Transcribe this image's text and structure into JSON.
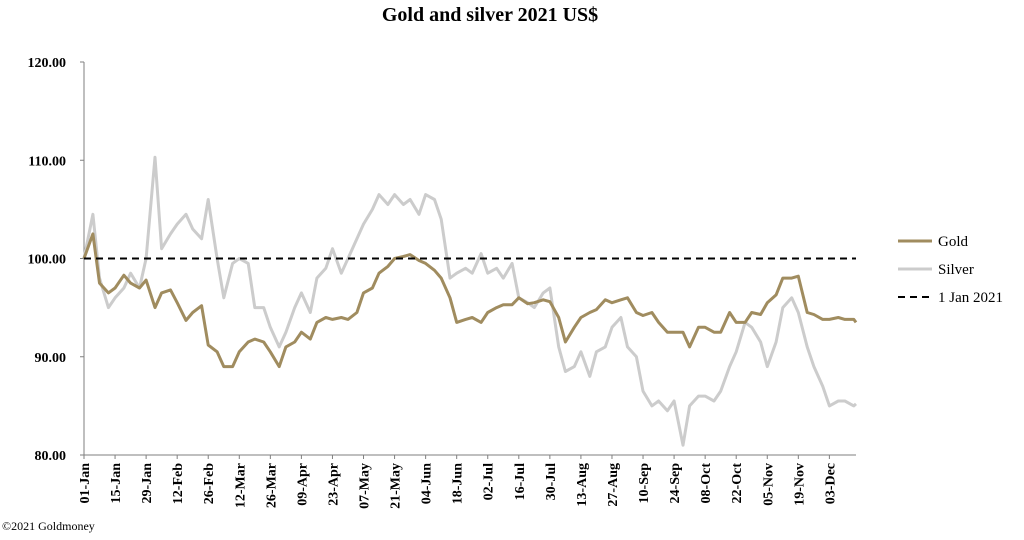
{
  "colors": {
    "gold": "#a08c5f",
    "silver": "#cccccc",
    "reference": "#000000",
    "axis": "#7f7f7f"
  },
  "copyright": "©2021 Goldmoney",
  "chart_data": {
    "type": "line",
    "title": "Gold and silver 2021  US$",
    "xlabel": "",
    "ylabel": "",
    "ylim": [
      80,
      120
    ],
    "y_ticks": [
      "120.00",
      "110.00",
      "100.00",
      "90.00",
      "80.00"
    ],
    "x_tick_labels": [
      "01-Jan",
      "15-Jan",
      "29-Jan",
      "12-Feb",
      "26-Feb",
      "12-Mar",
      "26-Mar",
      "09-Apr",
      "23-Apr",
      "07-May",
      "21-May",
      "04-Jun",
      "18-Jun",
      "02-Jul",
      "16-Jul",
      "30-Jul",
      "13-Aug",
      "27-Aug",
      "10-Sep",
      "24-Sep",
      "08-Oct",
      "22-Oct",
      "05-Nov",
      "19-Nov",
      "03-Dec"
    ],
    "x_range": [
      "01-Jan",
      "15-Dec"
    ],
    "grid": false,
    "legend_position": "right",
    "series": [
      {
        "name": "Gold",
        "x": [
          "01-Jan",
          "05-Jan",
          "08-Jan",
          "12-Jan",
          "15-Jan",
          "19-Jan",
          "22-Jan",
          "26-Jan",
          "29-Jan",
          "02-Feb",
          "05-Feb",
          "09-Feb",
          "12-Feb",
          "16-Feb",
          "19-Feb",
          "23-Feb",
          "26-Feb",
          "02-Mar",
          "05-Mar",
          "09-Mar",
          "12-Mar",
          "16-Mar",
          "19-Mar",
          "23-Mar",
          "26-Mar",
          "30-Mar",
          "02-Apr",
          "06-Apr",
          "09-Apr",
          "13-Apr",
          "16-Apr",
          "20-Apr",
          "23-Apr",
          "27-Apr",
          "30-Apr",
          "04-May",
          "07-May",
          "11-May",
          "14-May",
          "18-May",
          "21-May",
          "25-May",
          "28-May",
          "01-Jun",
          "04-Jun",
          "08-Jun",
          "11-Jun",
          "15-Jun",
          "18-Jun",
          "22-Jun",
          "25-Jun",
          "29-Jun",
          "02-Jul",
          "06-Jul",
          "09-Jul",
          "13-Jul",
          "16-Jul",
          "20-Jul",
          "23-Jul",
          "27-Jul",
          "30-Jul",
          "03-Aug",
          "06-Aug",
          "10-Aug",
          "13-Aug",
          "17-Aug",
          "20-Aug",
          "24-Aug",
          "27-Aug",
          "31-Aug",
          "03-Sep",
          "07-Sep",
          "10-Sep",
          "14-Sep",
          "17-Sep",
          "21-Sep",
          "24-Sep",
          "28-Sep",
          "01-Oct",
          "05-Oct",
          "08-Oct",
          "12-Oct",
          "15-Oct",
          "19-Oct",
          "22-Oct",
          "26-Oct",
          "29-Oct",
          "02-Nov",
          "05-Nov",
          "09-Nov",
          "12-Nov",
          "16-Nov",
          "19-Nov",
          "23-Nov",
          "26-Nov",
          "30-Nov",
          "03-Dec",
          "07-Dec",
          "10-Dec",
          "14-Dec",
          "15-Dec"
        ],
        "values": [
          100.0,
          102.5,
          97.5,
          96.5,
          97.0,
          98.3,
          97.5,
          97.0,
          97.8,
          95.0,
          96.5,
          96.8,
          95.5,
          93.7,
          94.5,
          95.2,
          91.2,
          90.5,
          89.0,
          89.0,
          90.5,
          91.5,
          91.8,
          91.5,
          90.5,
          89.0,
          91.0,
          91.5,
          92.5,
          91.8,
          93.5,
          94.0,
          93.8,
          94.0,
          93.8,
          94.5,
          96.5,
          97.0,
          98.5,
          99.2,
          100.0,
          100.2,
          100.4,
          99.8,
          99.5,
          98.8,
          98.0,
          96.0,
          93.5,
          93.8,
          94.0,
          93.5,
          94.5,
          95.0,
          95.3,
          95.3,
          96.0,
          95.4,
          95.5,
          95.8,
          95.6,
          94.0,
          91.5,
          93.0,
          94.0,
          94.5,
          94.8,
          95.8,
          95.5,
          95.8,
          96.0,
          94.5,
          94.2,
          94.5,
          93.5,
          92.5,
          92.5,
          92.5,
          91.0,
          93.0,
          93.0,
          92.5,
          92.5,
          94.5,
          93.5,
          93.5,
          94.5,
          94.3,
          95.5,
          96.3,
          98.0,
          98.0,
          98.2,
          94.5,
          94.3,
          93.8,
          93.8,
          94.0,
          93.8,
          93.8,
          93.5
        ]
      },
      {
        "name": "Silver",
        "x": [
          "01-Jan",
          "05-Jan",
          "08-Jan",
          "12-Jan",
          "15-Jan",
          "19-Jan",
          "22-Jan",
          "26-Jan",
          "29-Jan",
          "02-Feb",
          "05-Feb",
          "09-Feb",
          "12-Feb",
          "16-Feb",
          "19-Feb",
          "23-Feb",
          "26-Feb",
          "02-Mar",
          "05-Mar",
          "09-Mar",
          "12-Mar",
          "16-Mar",
          "19-Mar",
          "23-Mar",
          "26-Mar",
          "30-Mar",
          "02-Apr",
          "06-Apr",
          "09-Apr",
          "13-Apr",
          "16-Apr",
          "20-Apr",
          "23-Apr",
          "27-Apr",
          "30-Apr",
          "04-May",
          "07-May",
          "11-May",
          "14-May",
          "18-May",
          "21-May",
          "25-May",
          "28-May",
          "01-Jun",
          "04-Jun",
          "08-Jun",
          "11-Jun",
          "15-Jun",
          "18-Jun",
          "22-Jun",
          "25-Jun",
          "29-Jun",
          "02-Jul",
          "06-Jul",
          "09-Jul",
          "13-Jul",
          "16-Jul",
          "20-Jul",
          "23-Jul",
          "27-Jul",
          "30-Jul",
          "03-Aug",
          "06-Aug",
          "10-Aug",
          "13-Aug",
          "17-Aug",
          "20-Aug",
          "24-Aug",
          "27-Aug",
          "31-Aug",
          "03-Sep",
          "07-Sep",
          "10-Sep",
          "14-Sep",
          "17-Sep",
          "21-Sep",
          "24-Sep",
          "28-Sep",
          "01-Oct",
          "05-Oct",
          "08-Oct",
          "12-Oct",
          "15-Oct",
          "19-Oct",
          "22-Oct",
          "26-Oct",
          "29-Oct",
          "02-Nov",
          "05-Nov",
          "09-Nov",
          "12-Nov",
          "16-Nov",
          "19-Nov",
          "23-Nov",
          "26-Nov",
          "30-Nov",
          "03-Dec",
          "07-Dec",
          "10-Dec",
          "14-Dec",
          "15-Dec"
        ],
        "values": [
          100.0,
          104.5,
          98.0,
          95.0,
          96.0,
          97.0,
          98.5,
          97.0,
          100.0,
          110.3,
          101.0,
          102.5,
          103.5,
          104.5,
          103.0,
          102.0,
          106.0,
          100.0,
          96.0,
          99.5,
          100.0,
          99.5,
          95.0,
          95.0,
          93.0,
          91.0,
          92.5,
          95.0,
          96.5,
          94.5,
          98.0,
          99.0,
          101.0,
          98.5,
          100.0,
          102.0,
          103.5,
          105.0,
          106.5,
          105.5,
          106.5,
          105.5,
          106.0,
          104.5,
          106.5,
          106.0,
          104.0,
          98.0,
          98.5,
          99.0,
          98.5,
          100.5,
          98.5,
          99.0,
          98.0,
          99.5,
          96.0,
          95.5,
          95.0,
          96.5,
          97.0,
          91.0,
          88.5,
          89.0,
          90.5,
          88.0,
          90.5,
          91.0,
          93.0,
          94.0,
          91.0,
          90.0,
          86.5,
          85.0,
          85.5,
          84.5,
          85.5,
          81.0,
          85.0,
          86.0,
          86.0,
          85.5,
          86.5,
          89.0,
          90.5,
          93.5,
          93.0,
          91.5,
          89.0,
          91.5,
          95.0,
          96.0,
          94.5,
          91.0,
          89.0,
          87.0,
          85.0,
          85.5,
          85.5,
          85.0,
          85.2
        ]
      },
      {
        "name": "1 Jan 2021",
        "x": [
          "01-Jan",
          "15-Dec"
        ],
        "values": [
          100,
          100
        ]
      }
    ]
  }
}
